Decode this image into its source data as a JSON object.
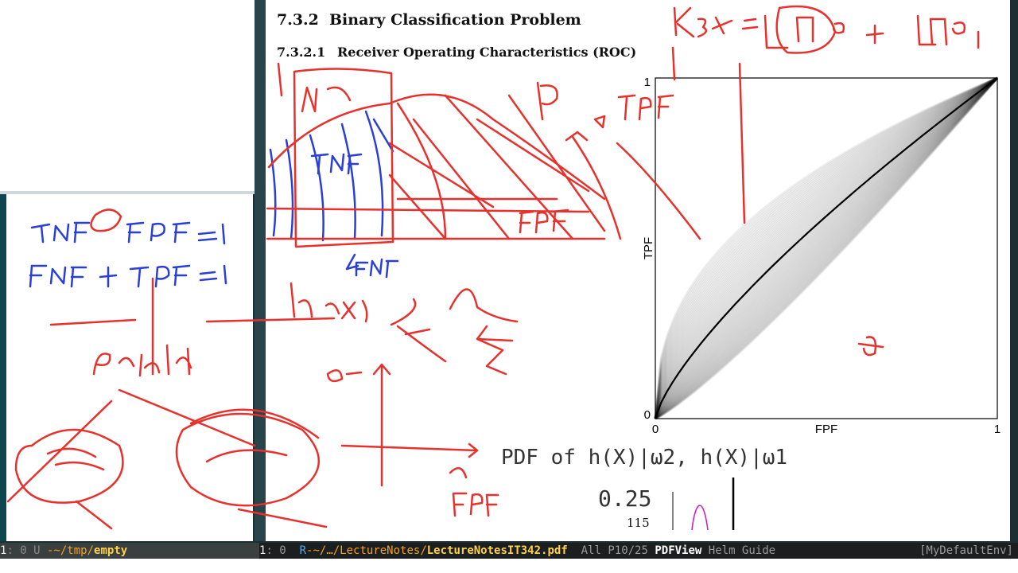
{
  "pdf": {
    "section_number": "7.3.2",
    "section_title": "Binary Classification Problem",
    "subsection_number": "7.3.2.1",
    "subsection_title": "Receiver Operating Characteristics (ROC)",
    "caption": "PDF of h(X)|ω2, h(X)|ω1",
    "tick_label": "0.25",
    "page_number": "115"
  },
  "chart_data": {
    "type": "line",
    "xlabel": "FPF",
    "ylabel": "TPF",
    "xlim": [
      0,
      1
    ],
    "ylim": [
      0,
      1
    ],
    "x_ticks": [
      "0",
      "1"
    ],
    "y_ticks": [
      "0",
      "1"
    ],
    "grid": false,
    "mean_curve_exponent": 0.75,
    "colors": {
      "curves": "#000000",
      "axes": "#000000"
    }
  },
  "annotations": {
    "color_red": "#e8312c",
    "color_blue": "#2a3fd6"
  },
  "modeline_left": {
    "window_num": "1",
    "status": ": 0 U ",
    "path_prefix": "-~/tmp/",
    "buffer": "empty"
  },
  "modeline_right": {
    "window_num": "1",
    "status": ": 0  ",
    "r_flag": "R",
    "path": "-~/…/LectureNotes/",
    "buffer": "LectureNotesIT342.pdf",
    "position": "  All P10/25 ",
    "mode": "PDFView",
    "minor_modes": " Helm Guide",
    "env": "[MyDefaultEnv]"
  }
}
